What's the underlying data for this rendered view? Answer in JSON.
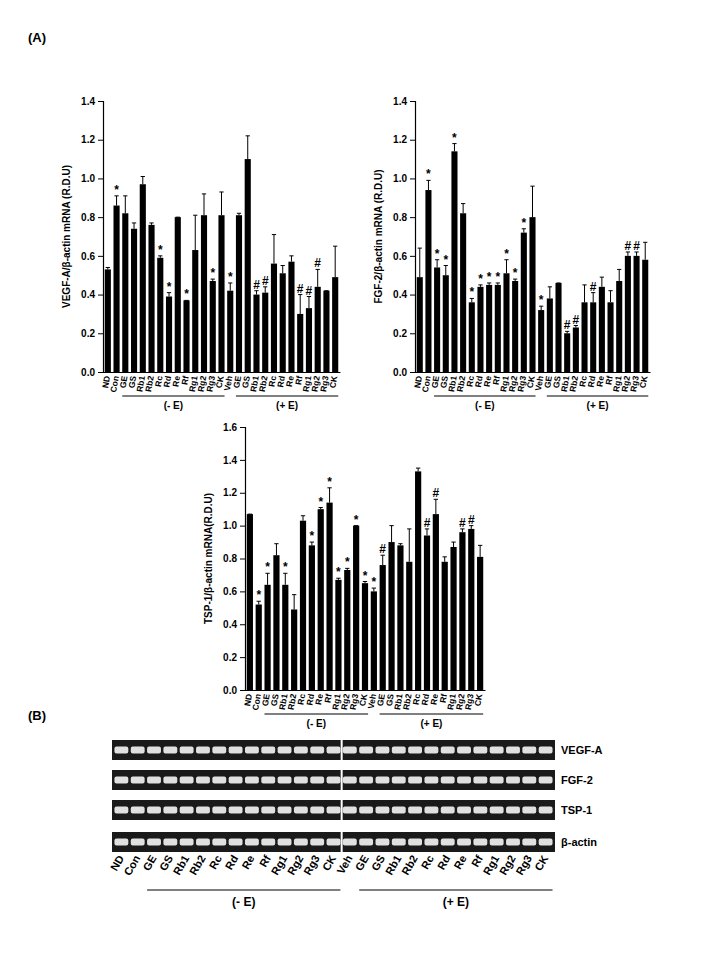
{
  "panel_a_label": "(A)",
  "chart_data": [
    {
      "type": "bar",
      "y_label": "VEGF-A/β-actin mRNA (R.D.U)",
      "categories": [
        "ND",
        "Con",
        "GE",
        "GS",
        "Rb1",
        "Rb2",
        "Rc",
        "Rd",
        "Re",
        "Rf",
        "Rg1",
        "Rg2",
        "Rg3",
        "CK",
        "Veh",
        "GE",
        "GS",
        "Rb1",
        "Rb2",
        "Rc",
        "Rd",
        "Re",
        "Rf",
        "Rg1",
        "Rg2",
        "Rg3",
        "CK"
      ],
      "values": [
        0.53,
        0.86,
        0.82,
        0.74,
        0.97,
        0.76,
        0.59,
        0.39,
        0.8,
        0.37,
        0.63,
        0.81,
        0.47,
        0.81,
        0.42,
        0.81,
        1.1,
        0.4,
        0.41,
        0.56,
        0.51,
        0.57,
        0.3,
        0.33,
        0.44,
        0.42,
        0.49
      ],
      "errors": [
        0.01,
        0.05,
        0.09,
        0.03,
        0.04,
        0.01,
        0.01,
        0.02,
        0.0,
        0.0,
        0.18,
        0.11,
        0.01,
        0.12,
        0.04,
        0.01,
        0.12,
        0.02,
        0.03,
        0.15,
        0.04,
        0.03,
        0.1,
        0.06,
        0.09,
        0.0,
        0.16
      ],
      "significance": [
        null,
        "*",
        null,
        null,
        null,
        null,
        "*",
        "*",
        null,
        "*",
        null,
        null,
        "*",
        null,
        "*",
        null,
        null,
        "#",
        "#",
        null,
        null,
        null,
        "#",
        "#",
        "#",
        null,
        null
      ],
      "color": "#000000",
      "ylim": [
        0,
        1.4
      ],
      "yticks": [
        {
          "value": 0,
          "label": "0.0"
        },
        0.2,
        0.4,
        0.6,
        0.8,
        {
          "value": 1,
          "label": "1.0"
        },
        1.2,
        1.4
      ],
      "grid": false,
      "groups": [
        {
          "label": "(- E)",
          "start": 2,
          "end": 13
        },
        {
          "label": "(+ E)",
          "start": 15,
          "end": 26
        }
      ]
    },
    {
      "type": "bar",
      "y_label": "FGF-2/β-actin mRNA (R.D.U)",
      "categories": [
        "ND",
        "Con",
        "GE",
        "GS",
        "Rb1",
        "Rb2",
        "Rc",
        "Rd",
        "Re",
        "Rf",
        "Rg1",
        "Rg2",
        "Rg3",
        "CK",
        "Veh",
        "GE",
        "GS",
        "Rb1",
        "Rb2",
        "Rc",
        "Rd",
        "Re",
        "Rf",
        "Rg1",
        "Rg2",
        "Rg3",
        "CK"
      ],
      "values": [
        0.49,
        0.94,
        0.54,
        0.5,
        1.14,
        0.82,
        0.36,
        0.44,
        0.45,
        0.45,
        0.51,
        0.47,
        0.72,
        0.8,
        0.32,
        0.38,
        0.46,
        0.2,
        0.23,
        0.36,
        0.36,
        0.44,
        0.36,
        0.47,
        0.6,
        0.6,
        0.58
      ],
      "errors": [
        0.15,
        0.05,
        0.04,
        0.05,
        0.04,
        0.05,
        0.02,
        0.01,
        0.01,
        0.01,
        0.07,
        0.01,
        0.02,
        0.16,
        0.02,
        0.06,
        0.0,
        0.01,
        0.01,
        0.09,
        0.05,
        0.05,
        0.06,
        0.06,
        0.02,
        0.02,
        0.09
      ],
      "significance": [
        null,
        "*",
        "*",
        "*",
        "*",
        null,
        "*",
        "*",
        "*",
        "*",
        "*",
        "*",
        "*",
        null,
        "*",
        null,
        null,
        "#",
        "#",
        null,
        "#",
        null,
        null,
        null,
        "#",
        "#",
        null
      ],
      "color": "#000000",
      "ylim": [
        0,
        1.4
      ],
      "yticks": [
        {
          "value": 0,
          "label": "0.0"
        },
        0.2,
        0.4,
        0.6,
        0.8,
        {
          "value": 1,
          "label": "1.0"
        },
        1.2,
        1.4
      ],
      "grid": false,
      "groups": [
        {
          "label": "(- E)",
          "start": 2,
          "end": 13
        },
        {
          "label": "(+ E)",
          "start": 15,
          "end": 26
        }
      ]
    },
    {
      "type": "bar",
      "y_label": "TSP-1/β-actin mRNA(R.D.U)",
      "categories": [
        "ND",
        "Con",
        "GE",
        "GS",
        "Rb1",
        "Rb2",
        "Rc",
        "Rd",
        "Re",
        "Rf",
        "Rg1",
        "Rg2",
        "Rg3",
        "CK",
        "Veh",
        "GE",
        "GS",
        "Rb1",
        "Rb2",
        "Rc",
        "Rd",
        "Re",
        "Rf",
        "Rg1",
        "Rg2",
        "Rg3",
        "CK"
      ],
      "values": [
        1.07,
        0.52,
        0.64,
        0.82,
        0.64,
        0.49,
        1.03,
        0.88,
        1.1,
        1.14,
        0.67,
        0.73,
        1.0,
        0.65,
        0.6,
        0.76,
        0.9,
        0.88,
        0.78,
        1.33,
        0.94,
        1.07,
        0.78,
        0.87,
        0.96,
        0.98,
        0.81
      ],
      "errors": [
        0.0,
        0.02,
        0.07,
        0.07,
        0.07,
        0.09,
        0.03,
        0.02,
        0.01,
        0.09,
        0.01,
        0.01,
        0.0,
        0.01,
        0.02,
        0.06,
        0.1,
        0.01,
        0.2,
        0.02,
        0.04,
        0.09,
        0.03,
        0.03,
        0.02,
        0.02,
        0.07
      ],
      "significance": [
        null,
        "*",
        "*",
        null,
        "*",
        null,
        null,
        "*",
        "*",
        "*",
        "*",
        "*",
        "*",
        "*",
        "*",
        "#",
        null,
        null,
        null,
        null,
        "#",
        "#",
        null,
        null,
        "#",
        "#",
        null
      ],
      "color": "#000000",
      "ylim": [
        0,
        1.6
      ],
      "yticks": [
        {
          "value": 0,
          "label": "0.0"
        },
        0.2,
        0.4,
        0.6,
        0.8,
        {
          "value": 1,
          "label": "1.0"
        },
        1.2,
        1.4,
        1.6
      ],
      "grid": false,
      "groups": [
        {
          "label": "(- E)",
          "start": 2,
          "end": 13
        },
        {
          "label": "(+ E)",
          "start": 15,
          "end": 26
        }
      ]
    }
  ],
  "gel": {
    "label": "(B)",
    "rows": [
      "VEGF-A",
      "FGF-2",
      "TSP-1",
      "β-actin"
    ],
    "lanes": [
      "ND",
      "Con",
      "GE",
      "GS",
      "Rb1",
      "Rb2",
      "Rc",
      "Rd",
      "Re",
      "Rf",
      "Rg1",
      "Rg2",
      "Rg3",
      "CK",
      "Veh",
      "GE",
      "GS",
      "Rb1",
      "Rb2",
      "Rc",
      "Rd",
      "Re",
      "Rf",
      "Rg1",
      "Rg2",
      "Rg3",
      "CK"
    ],
    "groups": [
      {
        "label": "(- E)",
        "start": 2,
        "end": 13
      },
      {
        "label": "(+ E)",
        "start": 15,
        "end": 26
      }
    ]
  }
}
